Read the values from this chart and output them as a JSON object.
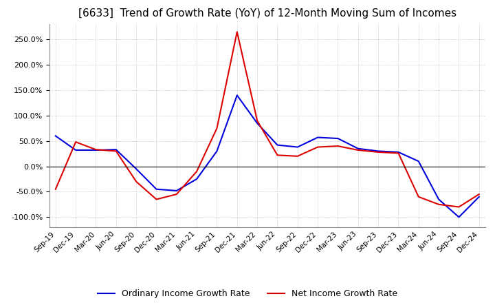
{
  "title": "[6633]  Trend of Growth Rate (YoY) of 12-Month Moving Sum of Incomes",
  "title_fontsize": 11,
  "ylim": [
    -120,
    280
  ],
  "yticks": [
    -100,
    -50,
    0,
    50,
    100,
    150,
    200,
    250
  ],
  "background_color": "#ffffff",
  "grid_color": "#aaaaaa",
  "ordinary_color": "#0000dd",
  "net_color": "#dd0000",
  "legend_labels": [
    "Ordinary Income Growth Rate",
    "Net Income Growth Rate"
  ],
  "x_labels": [
    "Sep-19",
    "Dec-19",
    "Mar-20",
    "Jun-20",
    "Sep-20",
    "Dec-20",
    "Mar-21",
    "Jun-21",
    "Sep-21",
    "Dec-21",
    "Mar-22",
    "Jun-22",
    "Sep-22",
    "Dec-22",
    "Mar-23",
    "Jun-23",
    "Sep-23",
    "Dec-23",
    "Mar-24",
    "Jun-24",
    "Sep-24",
    "Dec-24"
  ],
  "ordinary_income_growth": [
    60,
    32,
    32,
    33,
    -5,
    -45,
    -48,
    -25,
    30,
    140,
    85,
    42,
    38,
    57,
    55,
    35,
    30,
    28,
    10,
    -65,
    -100,
    -60
  ],
  "net_income_growth": [
    -45,
    48,
    33,
    30,
    -30,
    -65,
    -55,
    -10,
    75,
    265,
    90,
    22,
    20,
    38,
    40,
    32,
    28,
    26,
    -60,
    -75,
    -80,
    -55
  ]
}
